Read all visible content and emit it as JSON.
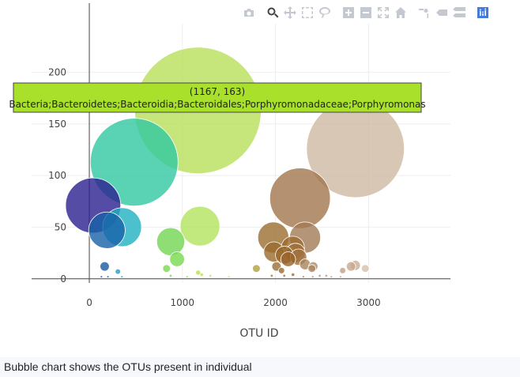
{
  "caption": "Bubble chart shows the OTUs present in individual",
  "modebar": [
    "camera-icon",
    "zoom-icon",
    "pan-icon",
    "box-select-icon",
    "lasso-icon",
    "zoom-in-icon",
    "zoom-out-icon",
    "autoscale-icon",
    "home-icon",
    "spike-lines-icon",
    "hover-closest-icon",
    "hover-compare-icon",
    "plotly-logo-icon"
  ],
  "chart_data": {
    "type": "scatter",
    "mode": "markers",
    "title": "",
    "xlabel": "OTU ID",
    "ylabel": "",
    "xlim": [
      -620,
      3880
    ],
    "ylim": [
      -4,
      247
    ],
    "xticks": [
      0,
      1000,
      2000,
      3000
    ],
    "xtick_labels": [
      "0",
      "1000",
      "2000",
      "3000"
    ],
    "yticks": [
      0,
      50,
      100,
      150,
      200
    ],
    "ytick_labels": [
      "0",
      "50",
      "100",
      "150",
      "200"
    ],
    "grid": true,
    "legend": "none",
    "colorscale": "Earth",
    "series": [
      {
        "points": [
          {
            "x": 1167,
            "y": 163,
            "size": 163,
            "color": "#b8e05a"
          },
          {
            "x": 2859,
            "y": 126,
            "size": 126,
            "color": "#d0b9a3"
          },
          {
            "x": 482,
            "y": 113,
            "size": 113,
            "color": "#2fc8a0"
          },
          {
            "x": 2264,
            "y": 78,
            "size": 78,
            "color": "#a0754d"
          },
          {
            "x": 41,
            "y": 71,
            "size": 71,
            "color": "#2a1f90"
          },
          {
            "x": 1189,
            "y": 51,
            "size": 51,
            "color": "#b2e35c"
          },
          {
            "x": 352,
            "y": 50,
            "size": 50,
            "color": "#1fb0c0"
          },
          {
            "x": 189,
            "y": 47,
            "size": 47,
            "color": "#1660a8"
          },
          {
            "x": 1977,
            "y": 40,
            "size": 40,
            "color": "#9a6e30"
          },
          {
            "x": 2318,
            "y": 40,
            "size": 40,
            "color": "#a27a55"
          },
          {
            "x": 874,
            "y": 36,
            "size": 36,
            "color": "#72d652"
          },
          {
            "x": 2186,
            "y": 30,
            "size": 30,
            "color": "#9c6a2e"
          },
          {
            "x": 1983,
            "y": 26,
            "size": 26,
            "color": "#9a6a2a"
          },
          {
            "x": 2215,
            "y": 25,
            "size": 25,
            "color": "#a0703d"
          },
          {
            "x": 2096,
            "y": 23,
            "size": 23,
            "color": "#99672a"
          },
          {
            "x": 2248,
            "y": 21,
            "size": 21,
            "color": "#a0723f"
          },
          {
            "x": 2137,
            "y": 19,
            "size": 19,
            "color": "#96622a"
          },
          {
            "x": 943,
            "y": 19,
            "size": 19,
            "color": "#78d850"
          },
          {
            "x": 2318,
            "y": 14,
            "size": 14,
            "color": "#a8845c"
          },
          {
            "x": 2858,
            "y": 13,
            "size": 13,
            "color": "#c8ae98"
          },
          {
            "x": 165,
            "y": 12,
            "size": 12,
            "color": "#1a5aa0"
          },
          {
            "x": 2812,
            "y": 12,
            "size": 12,
            "color": "#c4a890"
          },
          {
            "x": 2406,
            "y": 12,
            "size": 12,
            "color": "#b08a66"
          },
          {
            "x": 2011,
            "y": 12,
            "size": 12,
            "color": "#9c6e34"
          },
          {
            "x": 2391,
            "y": 10,
            "size": 10,
            "color": "#ad8762"
          },
          {
            "x": 1795,
            "y": 10,
            "size": 10,
            "color": "#b0a040"
          },
          {
            "x": 2965,
            "y": 10,
            "size": 10,
            "color": "#d4c0ae"
          },
          {
            "x": 830,
            "y": 10,
            "size": 10,
            "color": "#7cd84e"
          },
          {
            "x": 2722,
            "y": 8,
            "size": 8,
            "color": "#c0a186"
          },
          {
            "x": 2065,
            "y": 8,
            "size": 8,
            "color": "#9a6a30"
          },
          {
            "x": 307,
            "y": 7,
            "size": 7,
            "color": "#1aa0c8"
          },
          {
            "x": 1169,
            "y": 6,
            "size": 6,
            "color": "#bade5a"
          },
          {
            "x": 1208,
            "y": 4,
            "size": 4,
            "color": "#b8e05a"
          },
          {
            "x": 2188,
            "y": 4,
            "size": 4,
            "color": "#9c6a2e"
          },
          {
            "x": 2094,
            "y": 3,
            "size": 3,
            "color": "#99672a"
          },
          {
            "x": 2475,
            "y": 3,
            "size": 3,
            "color": "#b48e6c"
          },
          {
            "x": 874,
            "y": 3,
            "size": 3,
            "color": "#72d652"
          },
          {
            "x": 1960,
            "y": 3,
            "size": 3,
            "color": "#9a6e30"
          },
          {
            "x": 2546,
            "y": 3,
            "size": 3,
            "color": "#b8977a"
          },
          {
            "x": 1300,
            "y": 3,
            "size": 3,
            "color": "#c2e070"
          },
          {
            "x": 130,
            "y": 2,
            "size": 2,
            "color": "#1a50a0"
          },
          {
            "x": 200,
            "y": 2,
            "size": 2,
            "color": "#1a5aa8"
          },
          {
            "x": 350,
            "y": 2,
            "size": 2,
            "color": "#1aa0c8"
          },
          {
            "x": 2300,
            "y": 2,
            "size": 2,
            "color": "#a27a55"
          },
          {
            "x": 2400,
            "y": 2,
            "size": 2,
            "color": "#ad8762"
          },
          {
            "x": 2600,
            "y": 2,
            "size": 2,
            "color": "#bc9c80"
          },
          {
            "x": 1500,
            "y": 2,
            "size": 2,
            "color": "#c8e088"
          },
          {
            "x": 1050,
            "y": 2,
            "size": 2,
            "color": "#90d858"
          },
          {
            "x": 2700,
            "y": 2,
            "size": 2,
            "color": "#c0a186"
          }
        ]
      }
    ],
    "hover": {
      "point_label": "(1167, 163)",
      "text": "Bacteria;Bacteroidetes;Bacteroidia;Bacteroidales;Porphyromonadaceae;Porphyromonas",
      "background": "#a8e02c"
    }
  }
}
